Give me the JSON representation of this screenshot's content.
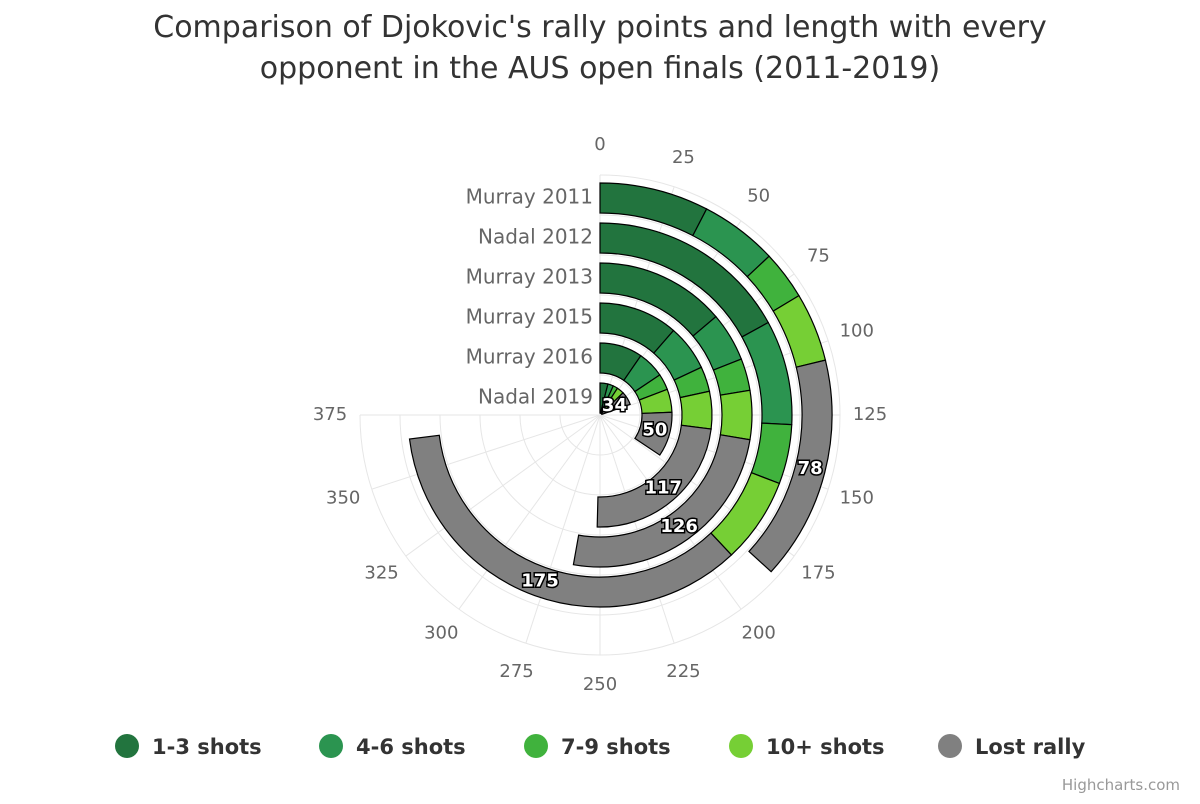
{
  "chart_data": {
    "type": "radial-stacked-bar",
    "title": [
      "Comparison of Djokovic's rally points and length with every",
      "opponent in the AUS open finals (2011-2019)"
    ],
    "categories": [
      "Murray 2011",
      "Nadal 2012",
      "Murray 2013",
      "Murray 2015",
      "Murray 2016",
      "Nadal 2019"
    ],
    "series": [
      {
        "name": "1-3 shots",
        "color": "#22743e",
        "values": [
          38,
          85,
          69,
          57,
          48,
          20
        ]
      },
      {
        "name": "4-6 shots",
        "color": "#2b9450",
        "values": [
          27,
          44,
          26,
          33,
          30,
          14
        ]
      },
      {
        "name": "7-9 shots",
        "color": "#40b23d",
        "values": [
          17,
          25,
          17,
          18,
          18,
          12
        ]
      },
      {
        "name": "10+ shots",
        "color": "#76cf35",
        "values": [
          24,
          36,
          26,
          27,
          26,
          18
        ]
      },
      {
        "name": "Lost rally",
        "color": "#808080",
        "values": [
          78,
          175,
          126,
          117,
          50,
          34
        ],
        "data_labels": true
      }
    ],
    "ylim": [
      0,
      375
    ],
    "yticks": [
      0,
      25,
      50,
      75,
      100,
      125,
      150,
      175,
      200,
      225,
      250,
      275,
      300,
      325,
      350,
      375
    ],
    "angle_span_degrees": 270,
    "grid": true,
    "legend": "bottom",
    "credits": "Highcharts.com"
  }
}
